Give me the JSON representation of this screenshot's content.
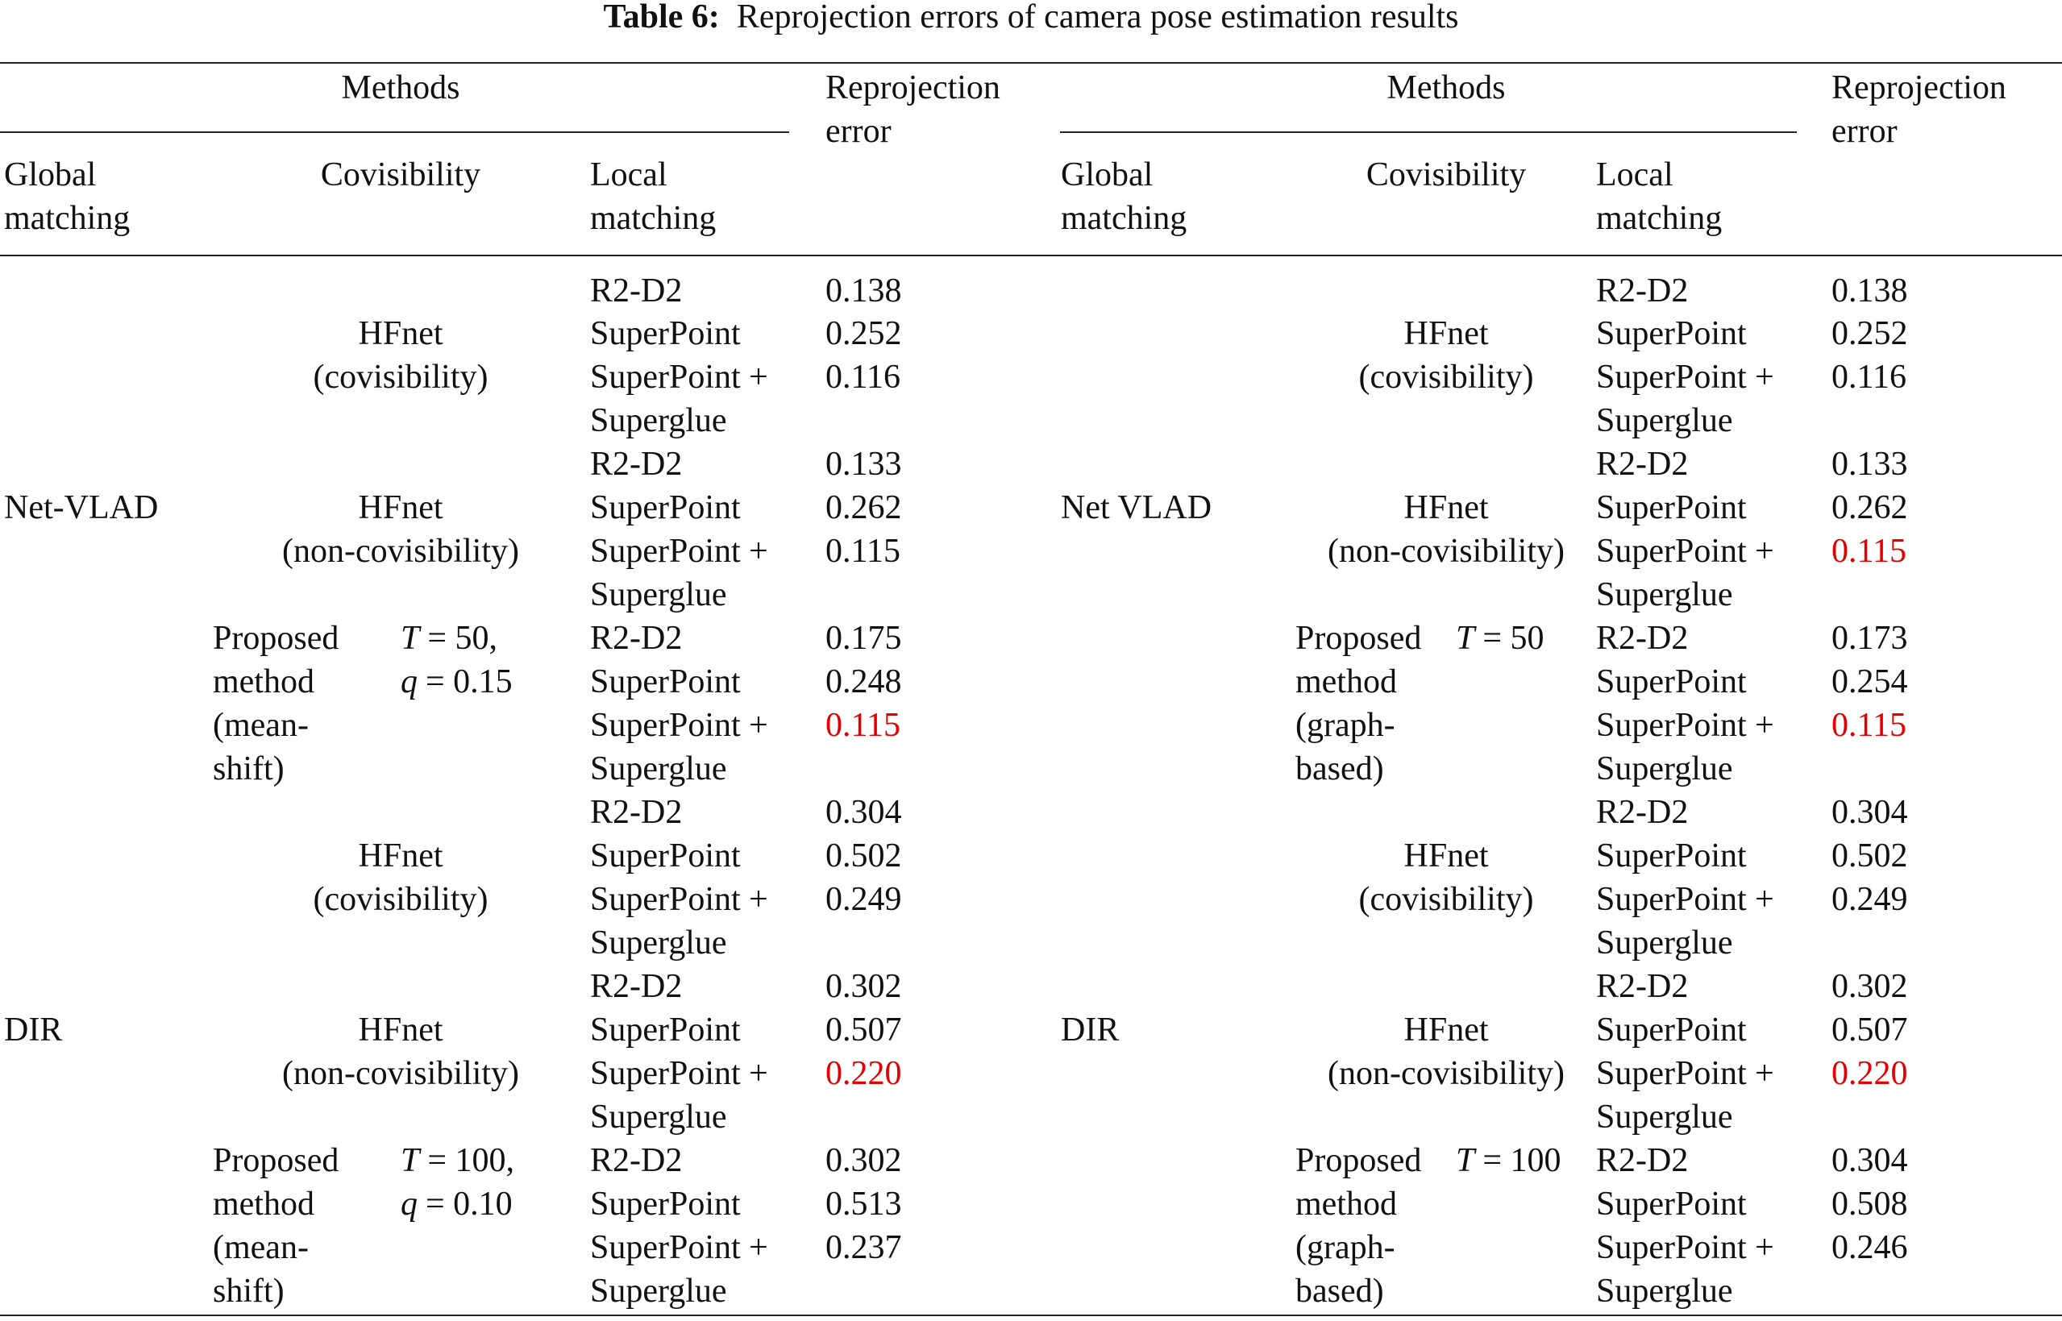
{
  "caption": {
    "label": "Table 6:",
    "title": "Reprojection errors of camera pose estimation results"
  },
  "header": {
    "methods": "Methods",
    "error": "Reprojection error",
    "global": "Global matching",
    "covisibility": "Covisibility",
    "local": "Local matching"
  },
  "panels": [
    {
      "groups": [
        {
          "global": "Net-VLAD",
          "methods": [
            {
              "name": "HFnet",
              "variant": "(covisibility)",
              "rows": [
                {
                  "local": "R2-D2",
                  "error": "0.138"
                },
                {
                  "local": "SuperPoint",
                  "error": "0.252"
                },
                {
                  "local": "SuperPoint + Superglue",
                  "error": "0.116"
                }
              ]
            },
            {
              "name": "HFnet",
              "variant": "(non-covisibility)",
              "rows": [
                {
                  "local": "R2-D2",
                  "error": "0.133"
                },
                {
                  "local": "SuperPoint",
                  "error": "0.262"
                },
                {
                  "local": "SuperPoint + Superglue",
                  "error": "0.115"
                }
              ]
            },
            {
              "name": "Proposed method",
              "variant": "(mean-shift)",
              "params": [
                {
                  "var": "T",
                  "rest": "= 50,"
                },
                {
                  "var": "q",
                  "rest": "= 0.15"
                }
              ],
              "rows": [
                {
                  "local": "R2-D2",
                  "error": "0.175"
                },
                {
                  "local": "SuperPoint",
                  "error": "0.248"
                },
                {
                  "local": "SuperPoint + Superglue",
                  "error": "0.115",
                  "highlight": true
                }
              ]
            }
          ]
        },
        {
          "global": "DIR",
          "methods": [
            {
              "name": "HFnet",
              "variant": "(covisibility)",
              "rows": [
                {
                  "local": "R2-D2",
                  "error": "0.304"
                },
                {
                  "local": "SuperPoint",
                  "error": "0.502"
                },
                {
                  "local": "SuperPoint + Superglue",
                  "error": "0.249"
                }
              ]
            },
            {
              "name": "HFnet",
              "variant": "(non-covisibility)",
              "rows": [
                {
                  "local": "R2-D2",
                  "error": "0.302"
                },
                {
                  "local": "SuperPoint",
                  "error": "0.507"
                },
                {
                  "local": "SuperPoint + Superglue",
                  "error": "0.220",
                  "highlight": true
                }
              ]
            },
            {
              "name": "Proposed method",
              "variant": "(mean-shift)",
              "params": [
                {
                  "var": "T",
                  "rest": "= 100,"
                },
                {
                  "var": "q",
                  "rest": "= 0.10"
                }
              ],
              "rows": [
                {
                  "local": "R2-D2",
                  "error": "0.302"
                },
                {
                  "local": "SuperPoint",
                  "error": "0.513"
                },
                {
                  "local": "SuperPoint + Superglue",
                  "error": "0.237"
                }
              ]
            }
          ]
        }
      ]
    },
    {
      "groups": [
        {
          "global": "Net VLAD",
          "methods": [
            {
              "name": "HFnet",
              "variant": "(covisibility)",
              "rows": [
                {
                  "local": "R2-D2",
                  "error": "0.138"
                },
                {
                  "local": "SuperPoint",
                  "error": "0.252"
                },
                {
                  "local": "SuperPoint + Superglue",
                  "error": "0.116"
                }
              ]
            },
            {
              "name": "HFnet",
              "variant": "(non-covisibility)",
              "rows": [
                {
                  "local": "R2-D2",
                  "error": "0.133"
                },
                {
                  "local": "SuperPoint",
                  "error": "0.262"
                },
                {
                  "local": "SuperPoint + Superglue",
                  "error": "0.115",
                  "highlight": true
                }
              ]
            },
            {
              "name": "Proposed method",
              "variant": "(graph-based)",
              "params": [
                {
                  "var": "T",
                  "rest": "= 50"
                }
              ],
              "rows": [
                {
                  "local": "R2-D2",
                  "error": "0.173"
                },
                {
                  "local": "SuperPoint",
                  "error": "0.254"
                },
                {
                  "local": "SuperPoint + Superglue",
                  "error": "0.115",
                  "highlight": true
                }
              ]
            }
          ]
        },
        {
          "global": "DIR",
          "methods": [
            {
              "name": "HFnet",
              "variant": "(covisibility)",
              "rows": [
                {
                  "local": "R2-D2",
                  "error": "0.304"
                },
                {
                  "local": "SuperPoint",
                  "error": "0.502"
                },
                {
                  "local": "SuperPoint + Superglue",
                  "error": "0.249"
                }
              ]
            },
            {
              "name": "HFnet",
              "variant": "(non-covisibility)",
              "rows": [
                {
                  "local": "R2-D2",
                  "error": "0.302"
                },
                {
                  "local": "SuperPoint",
                  "error": "0.507"
                },
                {
                  "local": "SuperPoint + Superglue",
                  "error": "0.220",
                  "highlight": true
                }
              ]
            },
            {
              "name": "Proposed method",
              "variant": "(graph-based)",
              "params": [
                {
                  "var": "T",
                  "rest": "= 100"
                }
              ],
              "rows": [
                {
                  "local": "R2-D2",
                  "error": "0.304"
                },
                {
                  "local": "SuperPoint",
                  "error": "0.508"
                },
                {
                  "local": "SuperPoint + Superglue",
                  "error": "0.246"
                }
              ]
            }
          ]
        }
      ]
    }
  ]
}
